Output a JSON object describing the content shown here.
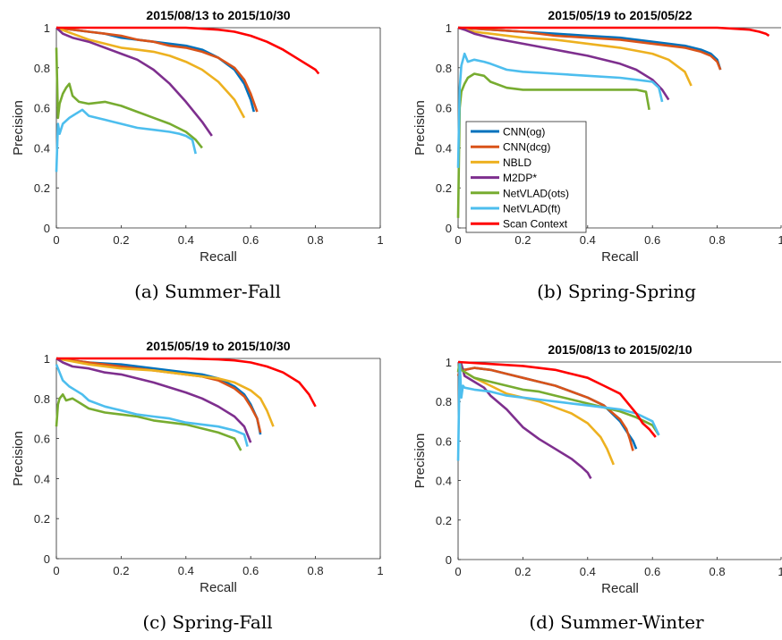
{
  "figure": {
    "captions": [
      "(a) Summer-Fall",
      "(b) Spring-Spring",
      "(c) Spring-Fall",
      "(d) Summer-Winter"
    ],
    "legend": {
      "entries": [
        {
          "label": "CNN(og)",
          "color": "#0072BD"
        },
        {
          "label": "CNN(dcg)",
          "color": "#D95319"
        },
        {
          "label": "NBLD",
          "color": "#EDB120"
        },
        {
          "label": "M2DP*",
          "color": "#7E2F8E"
        },
        {
          "label": "NetVLAD(ots)",
          "color": "#77AC30"
        },
        {
          "label": "NetVLAD(ft)",
          "color": "#4DBEEE"
        },
        {
          "label": "Scan Context",
          "color": "#FF0000"
        }
      ]
    }
  },
  "chart_data": [
    {
      "type": "line",
      "title": "2015/08/13 to 2015/10/30",
      "xlabel": "Recall",
      "ylabel": "Precision",
      "xlim": [
        0,
        1
      ],
      "ylim": [
        0,
        1
      ],
      "xticks": [
        "0",
        "0.2",
        "0.4",
        "0.6",
        "0.8",
        "1"
      ],
      "yticks": [
        "0",
        "0.2",
        "0.4",
        "0.6",
        "0.8",
        "1"
      ],
      "grid": false,
      "series": [
        {
          "name": "CNN(og)",
          "x": [
            0,
            0.05,
            0.1,
            0.15,
            0.2,
            0.25,
            0.3,
            0.35,
            0.4,
            0.45,
            0.5,
            0.55,
            0.58,
            0.6,
            0.61
          ],
          "y": [
            1.0,
            0.99,
            0.98,
            0.97,
            0.95,
            0.94,
            0.93,
            0.92,
            0.91,
            0.89,
            0.85,
            0.79,
            0.72,
            0.64,
            0.58
          ]
        },
        {
          "name": "CNN(dcg)",
          "x": [
            0,
            0.05,
            0.1,
            0.15,
            0.2,
            0.25,
            0.3,
            0.35,
            0.4,
            0.45,
            0.5,
            0.55,
            0.58,
            0.6,
            0.62
          ],
          "y": [
            1.0,
            0.99,
            0.98,
            0.97,
            0.96,
            0.94,
            0.93,
            0.91,
            0.9,
            0.88,
            0.85,
            0.8,
            0.74,
            0.67,
            0.58
          ]
        },
        {
          "name": "NBLD",
          "x": [
            0,
            0.05,
            0.1,
            0.15,
            0.2,
            0.25,
            0.3,
            0.35,
            0.4,
            0.45,
            0.5,
            0.55,
            0.58
          ],
          "y": [
            1.0,
            0.97,
            0.94,
            0.92,
            0.9,
            0.89,
            0.88,
            0.86,
            0.83,
            0.79,
            0.73,
            0.64,
            0.55
          ]
        },
        {
          "name": "M2DP*",
          "x": [
            0,
            0.02,
            0.05,
            0.1,
            0.15,
            0.2,
            0.25,
            0.3,
            0.35,
            0.4,
            0.45,
            0.48
          ],
          "y": [
            1.0,
            0.97,
            0.95,
            0.93,
            0.9,
            0.87,
            0.84,
            0.79,
            0.72,
            0.63,
            0.53,
            0.46
          ]
        },
        {
          "name": "NetVLAD(ots)",
          "x": [
            0,
            0.005,
            0.01,
            0.02,
            0.03,
            0.04,
            0.05,
            0.07,
            0.1,
            0.15,
            0.2,
            0.25,
            0.3,
            0.35,
            0.4,
            0.43,
            0.45
          ],
          "y": [
            0.9,
            0.55,
            0.62,
            0.67,
            0.7,
            0.72,
            0.66,
            0.63,
            0.62,
            0.63,
            0.61,
            0.58,
            0.55,
            0.52,
            0.48,
            0.44,
            0.4
          ]
        },
        {
          "name": "NetVLAD(ft)",
          "x": [
            0,
            0.005,
            0.01,
            0.02,
            0.04,
            0.06,
            0.08,
            0.1,
            0.15,
            0.2,
            0.25,
            0.3,
            0.35,
            0.38,
            0.4,
            0.42,
            0.43
          ],
          "y": [
            0.28,
            0.52,
            0.47,
            0.52,
            0.55,
            0.57,
            0.59,
            0.56,
            0.54,
            0.52,
            0.5,
            0.49,
            0.48,
            0.47,
            0.46,
            0.44,
            0.37
          ]
        },
        {
          "name": "Scan Context",
          "x": [
            0,
            0.1,
            0.2,
            0.3,
            0.4,
            0.45,
            0.5,
            0.55,
            0.6,
            0.65,
            0.7,
            0.75,
            0.8,
            0.81
          ],
          "y": [
            1.0,
            1.0,
            1.0,
            1.0,
            1.0,
            0.995,
            0.99,
            0.98,
            0.96,
            0.93,
            0.89,
            0.84,
            0.79,
            0.77
          ]
        }
      ]
    },
    {
      "type": "line",
      "title": "2015/05/19 to 2015/05/22",
      "xlabel": "Recall",
      "ylabel": "Precision",
      "xlim": [
        0,
        1
      ],
      "ylim": [
        0,
        1
      ],
      "xticks": [
        "0",
        "0.2",
        "0.4",
        "0.6",
        "0.8",
        "1"
      ],
      "yticks": [
        "0",
        "0.2",
        "0.4",
        "0.6",
        "0.8",
        "1"
      ],
      "grid": false,
      "legend": "inside-left",
      "series": [
        {
          "name": "CNN(og)",
          "x": [
            0,
            0.1,
            0.2,
            0.3,
            0.4,
            0.5,
            0.6,
            0.65,
            0.7,
            0.75,
            0.78,
            0.8,
            0.81
          ],
          "y": [
            1.0,
            0.99,
            0.98,
            0.97,
            0.96,
            0.95,
            0.93,
            0.92,
            0.91,
            0.89,
            0.87,
            0.84,
            0.79
          ]
        },
        {
          "name": "CNN(dcg)",
          "x": [
            0,
            0.1,
            0.2,
            0.3,
            0.4,
            0.5,
            0.6,
            0.65,
            0.7,
            0.75,
            0.78,
            0.8,
            0.81
          ],
          "y": [
            1.0,
            0.99,
            0.98,
            0.96,
            0.95,
            0.94,
            0.92,
            0.91,
            0.9,
            0.88,
            0.86,
            0.83,
            0.79
          ]
        },
        {
          "name": "NBLD",
          "x": [
            0,
            0.05,
            0.1,
            0.2,
            0.3,
            0.4,
            0.5,
            0.6,
            0.65,
            0.7,
            0.72
          ],
          "y": [
            1.0,
            0.98,
            0.97,
            0.95,
            0.94,
            0.92,
            0.9,
            0.87,
            0.84,
            0.78,
            0.71
          ]
        },
        {
          "name": "M2DP*",
          "x": [
            0,
            0.02,
            0.05,
            0.1,
            0.2,
            0.3,
            0.4,
            0.5,
            0.55,
            0.6,
            0.63,
            0.65
          ],
          "y": [
            1.0,
            0.99,
            0.97,
            0.95,
            0.92,
            0.89,
            0.86,
            0.82,
            0.79,
            0.74,
            0.69,
            0.64
          ]
        },
        {
          "name": "NetVLAD(ots)",
          "x": [
            0,
            0.005,
            0.01,
            0.02,
            0.03,
            0.05,
            0.08,
            0.1,
            0.15,
            0.2,
            0.3,
            0.4,
            0.5,
            0.55,
            0.58,
            0.59
          ],
          "y": [
            0.05,
            0.6,
            0.68,
            0.72,
            0.75,
            0.77,
            0.76,
            0.73,
            0.7,
            0.69,
            0.69,
            0.69,
            0.69,
            0.69,
            0.68,
            0.59
          ]
        },
        {
          "name": "NetVLAD(ft)",
          "x": [
            0,
            0.005,
            0.01,
            0.02,
            0.03,
            0.05,
            0.08,
            0.1,
            0.15,
            0.2,
            0.3,
            0.4,
            0.5,
            0.55,
            0.6,
            0.62,
            0.63
          ],
          "y": [
            0.3,
            0.7,
            0.81,
            0.87,
            0.83,
            0.84,
            0.83,
            0.82,
            0.79,
            0.78,
            0.77,
            0.76,
            0.75,
            0.74,
            0.73,
            0.7,
            0.63
          ]
        },
        {
          "name": "Scan Context",
          "x": [
            0,
            0.2,
            0.4,
            0.6,
            0.8,
            0.85,
            0.9,
            0.93,
            0.95,
            0.96
          ],
          "y": [
            1.0,
            1.0,
            1.0,
            1.0,
            1.0,
            0.995,
            0.99,
            0.98,
            0.97,
            0.96
          ]
        }
      ]
    },
    {
      "type": "line",
      "title": "2015/05/19 to 2015/10/30",
      "xlabel": "Recall",
      "ylabel": "Precision",
      "xlim": [
        0,
        1
      ],
      "ylim": [
        0,
        1
      ],
      "xticks": [
        "0",
        "0.2",
        "0.4",
        "0.6",
        "0.8",
        "1"
      ],
      "yticks": [
        "0",
        "0.2",
        "0.4",
        "0.6",
        "0.8",
        "1"
      ],
      "grid": false,
      "series": [
        {
          "name": "CNN(og)",
          "x": [
            0,
            0.1,
            0.2,
            0.3,
            0.4,
            0.45,
            0.5,
            0.55,
            0.58,
            0.6,
            0.62,
            0.63
          ],
          "y": [
            1.0,
            0.98,
            0.97,
            0.95,
            0.93,
            0.92,
            0.9,
            0.86,
            0.82,
            0.77,
            0.7,
            0.62
          ]
        },
        {
          "name": "CNN(dcg)",
          "x": [
            0,
            0.1,
            0.2,
            0.3,
            0.4,
            0.45,
            0.5,
            0.55,
            0.58,
            0.6,
            0.62,
            0.63
          ],
          "y": [
            1.0,
            0.98,
            0.96,
            0.94,
            0.92,
            0.91,
            0.89,
            0.85,
            0.81,
            0.76,
            0.7,
            0.63
          ]
        },
        {
          "name": "NBLD",
          "x": [
            0,
            0.1,
            0.2,
            0.3,
            0.4,
            0.45,
            0.5,
            0.55,
            0.6,
            0.63,
            0.65,
            0.67
          ],
          "y": [
            1.0,
            0.97,
            0.95,
            0.94,
            0.92,
            0.91,
            0.9,
            0.88,
            0.84,
            0.8,
            0.74,
            0.66
          ]
        },
        {
          "name": "M2DP*",
          "x": [
            0,
            0.02,
            0.05,
            0.1,
            0.15,
            0.2,
            0.3,
            0.4,
            0.45,
            0.5,
            0.55,
            0.58,
            0.6
          ],
          "y": [
            1.0,
            0.98,
            0.96,
            0.95,
            0.93,
            0.92,
            0.88,
            0.83,
            0.8,
            0.76,
            0.71,
            0.66,
            0.58
          ]
        },
        {
          "name": "NetVLAD(ots)",
          "x": [
            0,
            0.005,
            0.01,
            0.02,
            0.03,
            0.05,
            0.08,
            0.1,
            0.15,
            0.2,
            0.25,
            0.3,
            0.35,
            0.4,
            0.45,
            0.5,
            0.55,
            0.57
          ],
          "y": [
            0.66,
            0.77,
            0.8,
            0.82,
            0.79,
            0.8,
            0.77,
            0.75,
            0.73,
            0.72,
            0.71,
            0.69,
            0.68,
            0.67,
            0.65,
            0.63,
            0.6,
            0.54
          ]
        },
        {
          "name": "NetVLAD(ft)",
          "x": [
            0,
            0.01,
            0.02,
            0.04,
            0.06,
            0.08,
            0.1,
            0.15,
            0.2,
            0.25,
            0.3,
            0.35,
            0.4,
            0.45,
            0.5,
            0.55,
            0.58,
            0.59
          ],
          "y": [
            0.97,
            0.93,
            0.89,
            0.86,
            0.84,
            0.82,
            0.79,
            0.76,
            0.74,
            0.72,
            0.71,
            0.7,
            0.68,
            0.67,
            0.66,
            0.64,
            0.62,
            0.56
          ]
        },
        {
          "name": "Scan Context",
          "x": [
            0,
            0.2,
            0.4,
            0.5,
            0.55,
            0.6,
            0.65,
            0.7,
            0.75,
            0.78,
            0.8
          ],
          "y": [
            1.0,
            1.0,
            1.0,
            0.995,
            0.99,
            0.98,
            0.96,
            0.93,
            0.88,
            0.82,
            0.76
          ]
        }
      ]
    },
    {
      "type": "line",
      "title": "2015/08/13 to 2015/02/10",
      "xlabel": "Recall",
      "ylabel": "Precision",
      "xlim": [
        0,
        1
      ],
      "ylim": [
        0,
        1
      ],
      "xticks": [
        "0",
        "0.2",
        "0.4",
        "0.6",
        "0.8",
        "1"
      ],
      "yticks": [
        "0",
        "0.2",
        "0.4",
        "0.6",
        "0.8",
        "1"
      ],
      "grid": false,
      "series": [
        {
          "name": "CNN(og)",
          "x": [
            0,
            0.01,
            0.02,
            0.05,
            0.1,
            0.15,
            0.2,
            0.25,
            0.3,
            0.35,
            0.4,
            0.45,
            0.5,
            0.52,
            0.54,
            0.55
          ],
          "y": [
            0.93,
            0.97,
            0.96,
            0.97,
            0.96,
            0.94,
            0.92,
            0.9,
            0.88,
            0.85,
            0.82,
            0.78,
            0.7,
            0.65,
            0.6,
            0.56
          ]
        },
        {
          "name": "CNN(dcg)",
          "x": [
            0,
            0.01,
            0.02,
            0.05,
            0.1,
            0.15,
            0.2,
            0.25,
            0.3,
            0.35,
            0.4,
            0.45,
            0.5,
            0.52,
            0.53,
            0.54
          ],
          "y": [
            0.93,
            0.97,
            0.96,
            0.97,
            0.96,
            0.94,
            0.92,
            0.9,
            0.88,
            0.85,
            0.82,
            0.78,
            0.71,
            0.66,
            0.61,
            0.55
          ]
        },
        {
          "name": "NBLD",
          "x": [
            0,
            0.01,
            0.02,
            0.05,
            0.1,
            0.15,
            0.2,
            0.25,
            0.3,
            0.35,
            0.4,
            0.44,
            0.46,
            0.48
          ],
          "y": [
            0.95,
            0.98,
            0.95,
            0.92,
            0.88,
            0.84,
            0.82,
            0.8,
            0.77,
            0.74,
            0.69,
            0.62,
            0.56,
            0.48
          ]
        },
        {
          "name": "M2DP*",
          "x": [
            0,
            0.01,
            0.02,
            0.05,
            0.08,
            0.1,
            0.15,
            0.2,
            0.25,
            0.3,
            0.35,
            0.38,
            0.4,
            0.41
          ],
          "y": [
            1.0,
            0.99,
            0.93,
            0.9,
            0.87,
            0.83,
            0.76,
            0.67,
            0.61,
            0.56,
            0.51,
            0.47,
            0.44,
            0.41
          ]
        },
        {
          "name": "NetVLAD(ots)",
          "x": [
            0,
            0.005,
            0.01,
            0.02,
            0.05,
            0.1,
            0.15,
            0.2,
            0.25,
            0.3,
            0.35,
            0.4,
            0.45,
            0.5,
            0.55,
            0.6,
            0.62
          ],
          "y": [
            0.95,
            1.0,
            0.96,
            0.95,
            0.92,
            0.9,
            0.88,
            0.86,
            0.85,
            0.83,
            0.81,
            0.79,
            0.77,
            0.75,
            0.72,
            0.68,
            0.63
          ]
        },
        {
          "name": "NetVLAD(ft)",
          "x": [
            0,
            0.005,
            0.01,
            0.015,
            0.02,
            0.05,
            0.1,
            0.15,
            0.2,
            0.25,
            0.3,
            0.35,
            0.4,
            0.45,
            0.5,
            0.55,
            0.6,
            0.62
          ],
          "y": [
            0.5,
            1.0,
            0.82,
            0.88,
            0.87,
            0.86,
            0.85,
            0.83,
            0.82,
            0.81,
            0.8,
            0.79,
            0.78,
            0.77,
            0.76,
            0.74,
            0.7,
            0.63
          ]
        },
        {
          "name": "Scan Context",
          "x": [
            0,
            0.1,
            0.2,
            0.3,
            0.35,
            0.4,
            0.45,
            0.5,
            0.52,
            0.55,
            0.57,
            0.59,
            0.61
          ],
          "y": [
            1.0,
            0.99,
            0.98,
            0.96,
            0.94,
            0.92,
            0.88,
            0.84,
            0.8,
            0.74,
            0.69,
            0.66,
            0.62
          ]
        }
      ]
    }
  ]
}
